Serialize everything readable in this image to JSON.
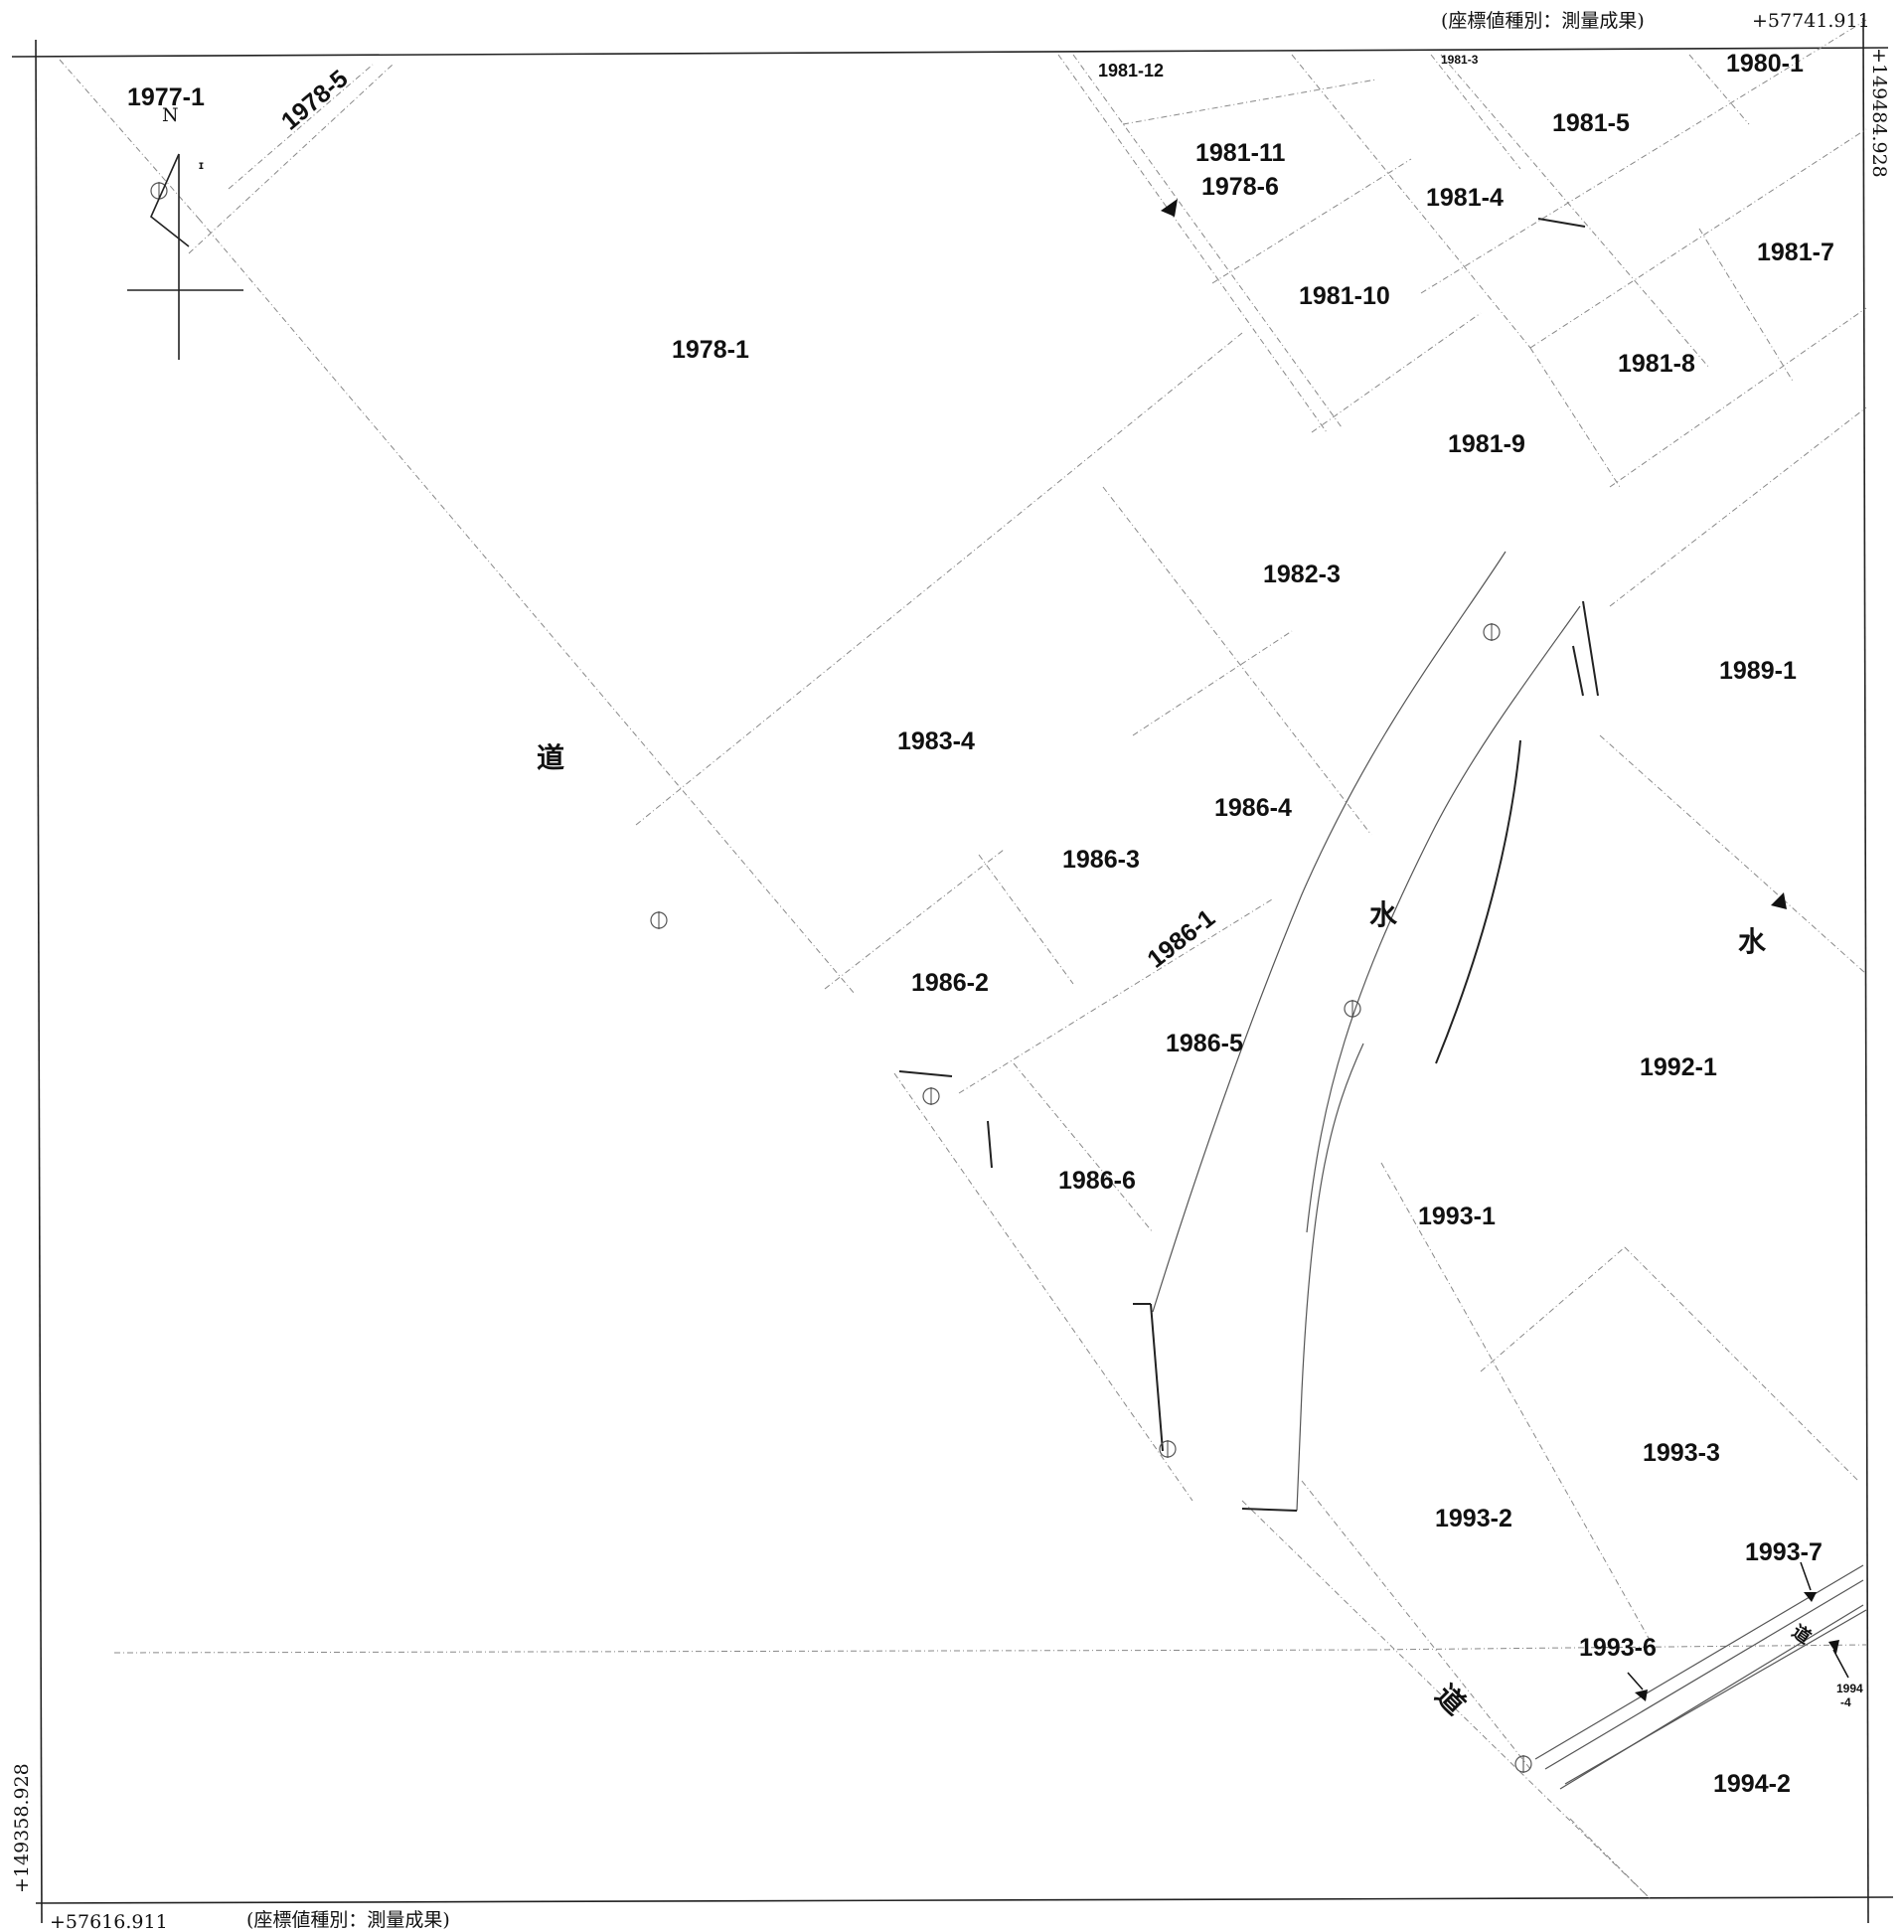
{
  "header": {
    "coord_type_top": "(座標値種別：測量成果)",
    "x_top_right": "+57741.911",
    "y_right": "+149484.928"
  },
  "footer": {
    "x_bottom_left": "+57616.911",
    "coord_type_bottom": "(座標値種別：測量成果)",
    "y_left": "+149358.928"
  },
  "north_arrow": {
    "label": "N",
    "icon": "north-arrow-icon"
  },
  "parcels": {
    "p1977_1": "1977-1",
    "p1978_5": "1978-5",
    "p1978_1": "1978-1",
    "p1978_6": "1978-6",
    "p1980_1": "1980-1",
    "p1981_3": "1981-3",
    "p1981_4": "1981-4",
    "p1981_5": "1981-5",
    "p1981_7": "1981-7",
    "p1981_8": "1981-8",
    "p1981_9": "1981-9",
    "p1981_10": "1981-10",
    "p1981_11": "1981-11",
    "p1981_12": "1981-12",
    "p1982_3": "1982-3",
    "p1983_4": "1983-4",
    "p1986_1": "1986-1",
    "p1986_2": "1986-2",
    "p1986_3": "1986-3",
    "p1986_4": "1986-4",
    "p1986_5": "1986-5",
    "p1986_6": "1986-6",
    "p1989_1": "1989-1",
    "p1992_1": "1992-1",
    "p1993_1": "1993-1",
    "p1993_2": "1993-2",
    "p1993_3": "1993-3",
    "p1993_6": "1993-6",
    "p1993_7": "1993-7",
    "p1994_2": "1994-2",
    "p1994_4a": "1994",
    "p1994_4b": "-4"
  },
  "features": {
    "road_1": "道",
    "road_2": "道",
    "road_3": "道",
    "water_1": "水",
    "water_2": "水"
  }
}
